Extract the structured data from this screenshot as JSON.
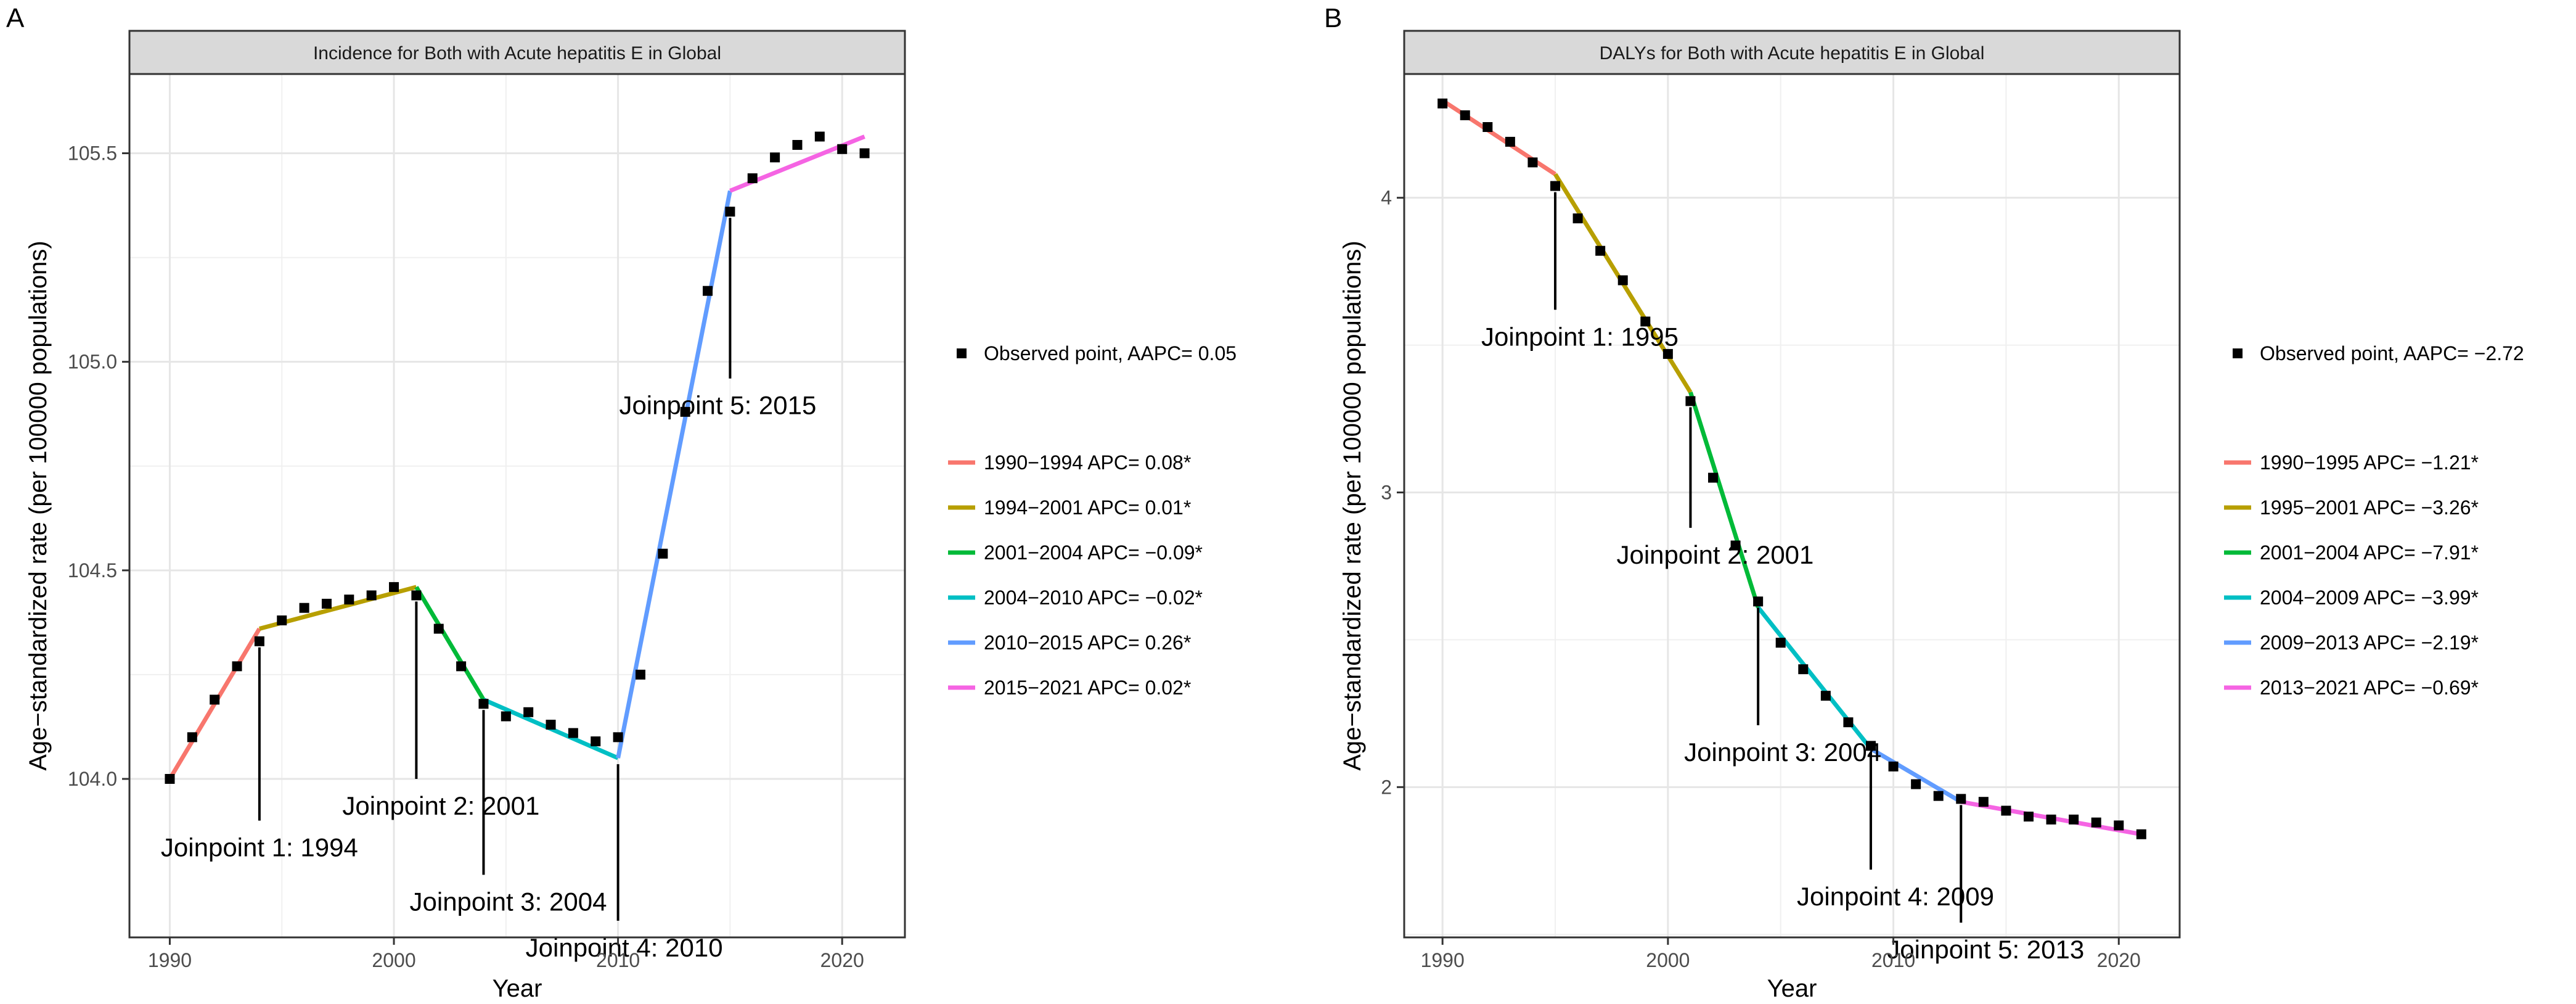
{
  "chart_data": [
    {
      "panel_label": "A",
      "type": "line",
      "title": "Incidence for Both with Acute hepatitis E in Global",
      "xlabel": "Year",
      "ylabel": "Age−standardized rate (per 100000 populations)",
      "xlim": [
        1988.2,
        2022.8
      ],
      "ylim": [
        103.62,
        105.69
      ],
      "x_ticks": [
        1990,
        2000,
        2010,
        2020
      ],
      "y_ticks": [
        104.0,
        104.5,
        105.0,
        105.5
      ],
      "y_tick_labels": [
        "104.0",
        "104.5",
        "105.0",
        "105.5"
      ],
      "y_minor": [
        104.25,
        104.75,
        105.25
      ],
      "observed": {
        "legend": "Observed point, AAPC= 0.05",
        "x": [
          1990,
          1991,
          1992,
          1993,
          1994,
          1995,
          1996,
          1997,
          1998,
          1999,
          2000,
          2001,
          2002,
          2003,
          2004,
          2005,
          2006,
          2007,
          2008,
          2009,
          2010,
          2011,
          2012,
          2013,
          2014,
          2015,
          2016,
          2017,
          2018,
          2019,
          2020,
          2021
        ],
        "y": [
          104.0,
          104.1,
          104.19,
          104.27,
          104.33,
          104.38,
          104.41,
          104.42,
          104.43,
          104.44,
          104.46,
          104.44,
          104.36,
          104.27,
          104.18,
          104.15,
          104.16,
          104.13,
          104.11,
          104.09,
          104.1,
          104.25,
          104.54,
          104.88,
          105.17,
          105.36,
          105.44,
          105.49,
          105.52,
          105.54,
          105.51,
          105.5
        ]
      },
      "series": [
        {
          "name": "1990−1994 APC= 0.08*",
          "color": "#F8766D",
          "x": [
            1990,
            1994
          ],
          "y": [
            104.0,
            104.36
          ]
        },
        {
          "name": "1994−2001 APC= 0.01*",
          "color": "#B79F00",
          "x": [
            1994,
            2001
          ],
          "y": [
            104.36,
            104.46
          ]
        },
        {
          "name": "2001−2004 APC= −0.09*",
          "color": "#00BA38",
          "x": [
            2001,
            2004
          ],
          "y": [
            104.46,
            104.19
          ]
        },
        {
          "name": "2004−2010 APC= −0.02*",
          "color": "#00BFC4",
          "x": [
            2004,
            2010
          ],
          "y": [
            104.19,
            104.05
          ]
        },
        {
          "name": "2010−2015 APC= 0.26*",
          "color": "#619CFF",
          "x": [
            2010,
            2015
          ],
          "y": [
            104.05,
            105.41
          ]
        },
        {
          "name": "2015−2021 APC= 0.02*",
          "color": "#F564E3",
          "x": [
            2015,
            2021
          ],
          "y": [
            105.41,
            105.54
          ]
        }
      ],
      "joinpoints": [
        {
          "label": "Joinpoint 1: 1994",
          "x": 1994,
          "y_top": 104.33,
          "y_bottom": 103.9
        },
        {
          "label": "Joinpoint 2: 2001",
          "x": 2001,
          "y_top": 104.44,
          "y_bottom": 104.0
        },
        {
          "label": "Joinpoint 3: 2004",
          "x": 2004,
          "y_top": 104.18,
          "y_bottom": 103.77
        },
        {
          "label": "Joinpoint 4: 2010",
          "x": 2010,
          "y_top": 104.05,
          "y_bottom": 103.66
        },
        {
          "label": "Joinpoint 5: 2015",
          "x": 2015,
          "y_top": 105.36,
          "y_bottom": 104.96
        }
      ]
    },
    {
      "panel_label": "B",
      "type": "line",
      "title": "DALYs for Both with Acute hepatitis E in Global",
      "xlabel": "Year",
      "ylabel": "Age−standardized rate (per 100000 populations)",
      "xlim": [
        1988.3,
        2022.7
      ],
      "ylim": [
        1.49,
        4.42
      ],
      "x_ticks": [
        1990,
        2000,
        2010,
        2020
      ],
      "y_ticks": [
        2,
        3,
        4
      ],
      "y_tick_labels": [
        "2",
        "3",
        "4"
      ],
      "y_minor": [
        1.5,
        2.5,
        3.5
      ],
      "observed": {
        "legend": "Observed point, AAPC= −2.72",
        "x": [
          1990,
          1991,
          1992,
          1993,
          1994,
          1995,
          1996,
          1997,
          1998,
          1999,
          2000,
          2001,
          2002,
          2003,
          2004,
          2005,
          2006,
          2007,
          2008,
          2009,
          2010,
          2011,
          2012,
          2013,
          2014,
          2015,
          2016,
          2017,
          2018,
          2019,
          2020,
          2021
        ],
        "y": [
          4.32,
          4.28,
          4.24,
          4.19,
          4.12,
          4.04,
          3.93,
          3.82,
          3.72,
          3.58,
          3.47,
          3.31,
          3.05,
          2.82,
          2.63,
          2.49,
          2.4,
          2.31,
          2.22,
          2.14,
          2.07,
          2.01,
          1.97,
          1.96,
          1.95,
          1.92,
          1.9,
          1.89,
          1.89,
          1.88,
          1.87,
          1.84
        ]
      },
      "series": [
        {
          "name": "1990−1995 APC= −1.21*",
          "color": "#F8766D",
          "x": [
            1990,
            1995
          ],
          "y": [
            4.33,
            4.08
          ]
        },
        {
          "name": "1995−2001 APC= −3.26*",
          "color": "#B79F00",
          "x": [
            1995,
            2001
          ],
          "y": [
            4.08,
            3.34
          ]
        },
        {
          "name": "2001−2004 APC= −7.91*",
          "color": "#00BA38",
          "x": [
            2001,
            2004
          ],
          "y": [
            3.34,
            2.61
          ]
        },
        {
          "name": "2004−2009 APC= −3.99*",
          "color": "#00BFC4",
          "x": [
            2004,
            2009
          ],
          "y": [
            2.61,
            2.13
          ]
        },
        {
          "name": "2009−2013 APC= −2.19*",
          "color": "#619CFF",
          "x": [
            2009,
            2013
          ],
          "y": [
            2.13,
            1.95
          ]
        },
        {
          "name": "2013−2021 APC= −0.69*",
          "color": "#F564E3",
          "x": [
            2013,
            2021
          ],
          "y": [
            1.95,
            1.84
          ]
        }
      ],
      "joinpoints": [
        {
          "label": "Joinpoint 1: 1995",
          "x": 1995,
          "y_top": 4.04,
          "y_bottom": 3.62
        },
        {
          "label": "Joinpoint 2: 2001",
          "x": 2001,
          "y_top": 3.31,
          "y_bottom": 2.88
        },
        {
          "label": "Joinpoint 3: 2004",
          "x": 2004,
          "y_top": 2.63,
          "y_bottom": 2.21
        },
        {
          "label": "Joinpoint 4: 2009",
          "x": 2009,
          "y_top": 2.14,
          "y_bottom": 1.72
        },
        {
          "label": "Joinpoint 5: 2013",
          "x": 2013,
          "y_top": 1.96,
          "y_bottom": 1.54
        }
      ]
    }
  ]
}
